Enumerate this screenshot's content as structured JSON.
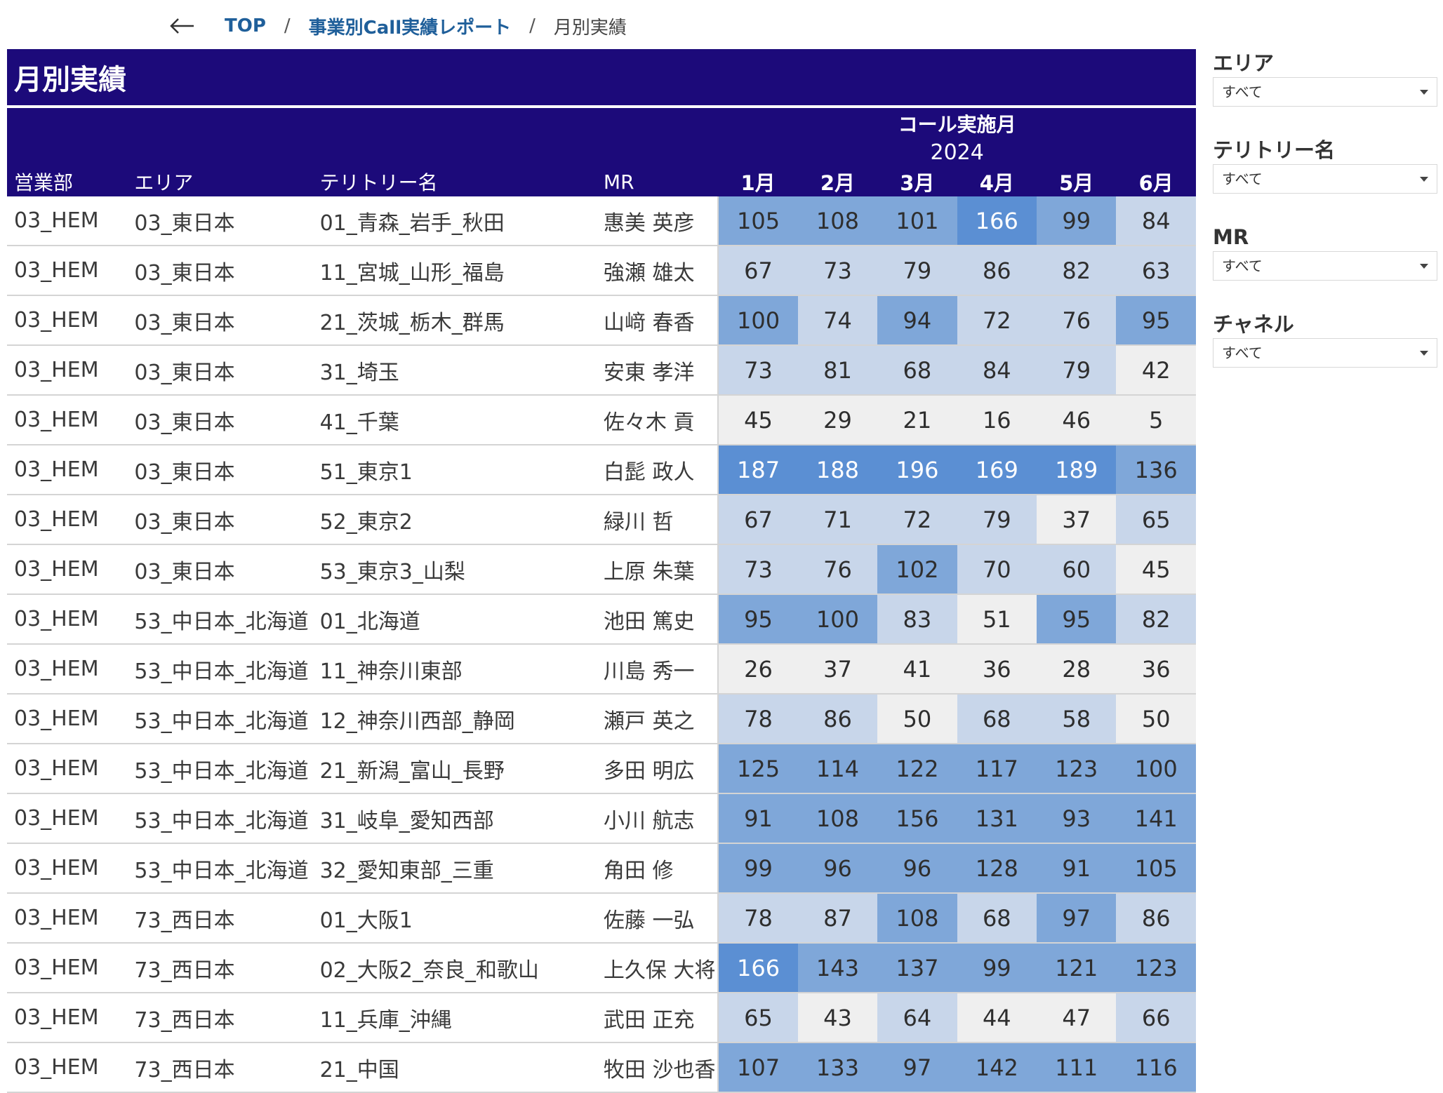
{
  "breadcrumb": {
    "home": "TOP",
    "separator": "/",
    "parent": "事業別Call実績レポート",
    "current": "月別実績"
  },
  "panel": {
    "title": "月別実績",
    "super_header": "コール実施月",
    "year": "2024",
    "columns": {
      "dept": "営業部",
      "area": "エリア",
      "territory": "テリトリー名",
      "mr": "MR"
    },
    "months": [
      "1月",
      "2月",
      "3月",
      "4月",
      "5月",
      "6月"
    ]
  },
  "rows": [
    {
      "dept": "03_HEM",
      "area": "03_東日本",
      "territory": "01_青森_岩手_秋田",
      "mr": "惠美 英彦",
      "values": [
        105,
        108,
        101,
        166,
        99,
        84
      ]
    },
    {
      "dept": "03_HEM",
      "area": "03_東日本",
      "territory": "11_宮城_山形_福島",
      "mr": "強瀬 雄太",
      "values": [
        67,
        73,
        79,
        86,
        82,
        63
      ]
    },
    {
      "dept": "03_HEM",
      "area": "03_東日本",
      "territory": "21_茨城_栃木_群馬",
      "mr": "山﨑 春香",
      "values": [
        100,
        74,
        94,
        72,
        76,
        95
      ]
    },
    {
      "dept": "03_HEM",
      "area": "03_東日本",
      "territory": "31_埼玉",
      "mr": "安東 孝洋",
      "values": [
        73,
        81,
        68,
        84,
        79,
        42
      ]
    },
    {
      "dept": "03_HEM",
      "area": "03_東日本",
      "territory": "41_千葉",
      "mr": "佐々木 貢",
      "values": [
        45,
        29,
        21,
        16,
        46,
        5
      ]
    },
    {
      "dept": "03_HEM",
      "area": "03_東日本",
      "territory": "51_東京1",
      "mr": "白髭 政人",
      "values": [
        187,
        188,
        196,
        169,
        189,
        136
      ]
    },
    {
      "dept": "03_HEM",
      "area": "03_東日本",
      "territory": "52_東京2",
      "mr": "緑川 哲",
      "values": [
        67,
        71,
        72,
        79,
        37,
        65
      ]
    },
    {
      "dept": "03_HEM",
      "area": "03_東日本",
      "territory": "53_東京3_山梨",
      "mr": "上原 朱葉",
      "values": [
        73,
        76,
        102,
        70,
        60,
        45
      ]
    },
    {
      "dept": "03_HEM",
      "area": "53_中日本_北海道",
      "territory": "01_北海道",
      "mr": "池田 篤史",
      "values": [
        95,
        100,
        83,
        51,
        95,
        82
      ]
    },
    {
      "dept": "03_HEM",
      "area": "53_中日本_北海道",
      "territory": "11_神奈川東部",
      "mr": "川島 秀一",
      "values": [
        26,
        37,
        41,
        36,
        28,
        36
      ]
    },
    {
      "dept": "03_HEM",
      "area": "53_中日本_北海道",
      "territory": "12_神奈川西部_静岡",
      "mr": "瀬戸 英之",
      "values": [
        78,
        86,
        50,
        68,
        58,
        50
      ]
    },
    {
      "dept": "03_HEM",
      "area": "53_中日本_北海道",
      "territory": "21_新潟_富山_長野",
      "mr": "多田 明広",
      "values": [
        125,
        114,
        122,
        117,
        123,
        100
      ]
    },
    {
      "dept": "03_HEM",
      "area": "53_中日本_北海道",
      "territory": "31_岐阜_愛知西部",
      "mr": "小川 航志",
      "values": [
        91,
        108,
        156,
        131,
        93,
        141
      ]
    },
    {
      "dept": "03_HEM",
      "area": "53_中日本_北海道",
      "territory": "32_愛知東部_三重",
      "mr": "角田 修",
      "values": [
        99,
        96,
        96,
        128,
        91,
        105
      ]
    },
    {
      "dept": "03_HEM",
      "area": "73_西日本",
      "territory": "01_大阪1",
      "mr": "佐藤 一弘",
      "values": [
        78,
        87,
        108,
        68,
        97,
        86
      ]
    },
    {
      "dept": "03_HEM",
      "area": "73_西日本",
      "territory": "02_大阪2_奈良_和歌山",
      "mr": "上久保 大将",
      "values": [
        166,
        143,
        137,
        99,
        121,
        123
      ]
    },
    {
      "dept": "03_HEM",
      "area": "73_西日本",
      "territory": "11_兵庫_沖縄",
      "mr": "武田 正充",
      "values": [
        65,
        43,
        64,
        44,
        47,
        66
      ]
    },
    {
      "dept": "03_HEM",
      "area": "73_西日本",
      "territory": "21_中国",
      "mr": "牧田 沙也香",
      "values": [
        107,
        133,
        97,
        142,
        111,
        116
      ]
    }
  ],
  "heat_levels": [
    [
      2,
      2,
      2,
      3,
      2,
      1
    ],
    [
      1,
      1,
      1,
      1,
      1,
      1
    ],
    [
      2,
      1,
      2,
      1,
      1,
      2
    ],
    [
      1,
      1,
      1,
      1,
      1,
      0
    ],
    [
      0,
      0,
      0,
      0,
      0,
      0
    ],
    [
      3,
      3,
      3,
      3,
      3,
      2
    ],
    [
      1,
      1,
      1,
      1,
      0,
      1
    ],
    [
      1,
      1,
      2,
      1,
      1,
      0
    ],
    [
      2,
      2,
      1,
      0,
      2,
      1
    ],
    [
      0,
      0,
      0,
      0,
      0,
      0
    ],
    [
      1,
      1,
      0,
      1,
      1,
      0
    ],
    [
      2,
      2,
      2,
      2,
      2,
      2
    ],
    [
      2,
      2,
      2,
      2,
      2,
      2
    ],
    [
      2,
      2,
      2,
      2,
      2,
      2
    ],
    [
      1,
      1,
      2,
      1,
      2,
      1
    ],
    [
      3,
      2,
      2,
      2,
      2,
      2
    ],
    [
      1,
      0,
      1,
      0,
      0,
      1
    ],
    [
      2,
      2,
      2,
      2,
      2,
      2
    ]
  ],
  "filters": [
    {
      "label": "エリア",
      "value": "すべて"
    },
    {
      "label": "テリトリー名",
      "value": "すべて"
    },
    {
      "label": "MR",
      "value": "すべて"
    },
    {
      "label": "チャネル",
      "value": "すべて"
    }
  ],
  "colors": {
    "header_bg": "#1c0a7a",
    "heat_low": "#efefef",
    "heat_mid": "#c8d6ea",
    "heat_high": "#7fa7d9",
    "heat_top": "#5b8fd3",
    "link": "#1f5f9a"
  },
  "icons": {
    "back": "arrow-left-icon",
    "dropdown": "caret-down-icon"
  }
}
